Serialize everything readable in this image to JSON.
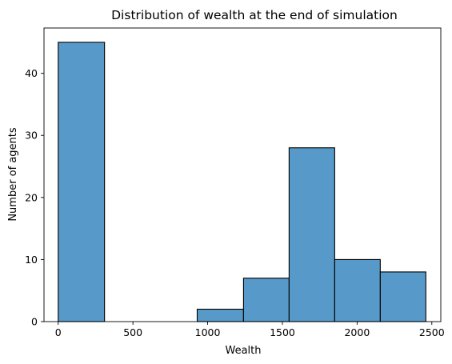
{
  "chart_data": {
    "type": "bar",
    "title": "Distribution of wealth at the end of simulation",
    "xlabel": "Wealth",
    "ylabel": "Number of agents",
    "xlim": [
      -95,
      2560
    ],
    "ylim": [
      0,
      47.3
    ],
    "xticks": [
      0,
      500,
      1000,
      1500,
      2000,
      2500
    ],
    "yticks": [
      0,
      10,
      20,
      30,
      40
    ],
    "grid": false,
    "bar_color": "#5799C8",
    "bins": [
      {
        "x0": 0,
        "x1": 310,
        "count": 45
      },
      {
        "x0": 310,
        "x1": 620,
        "count": 0
      },
      {
        "x0": 620,
        "x1": 930,
        "count": 0
      },
      {
        "x0": 930,
        "x1": 1240,
        "count": 2
      },
      {
        "x0": 1240,
        "x1": 1545,
        "count": 7
      },
      {
        "x0": 1545,
        "x1": 1850,
        "count": 28
      },
      {
        "x0": 1850,
        "x1": 2155,
        "count": 10
      },
      {
        "x0": 2155,
        "x1": 2460,
        "count": 8
      }
    ]
  }
}
